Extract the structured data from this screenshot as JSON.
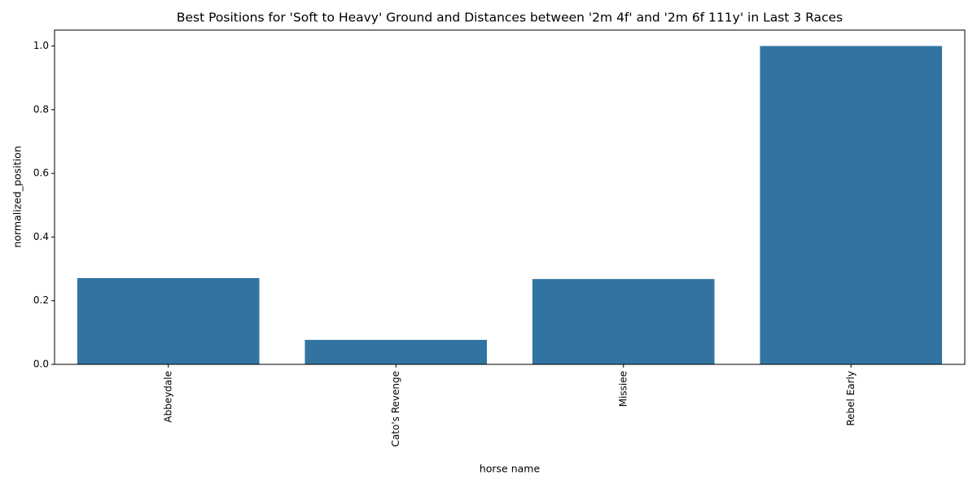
{
  "chart_data": {
    "type": "bar",
    "title": "Best Positions for 'Soft to Heavy' Ground and Distances between '2m 4f' and '2m 6f 111y' in Last 3 Races",
    "x_label": "horse name",
    "y_label": "normalized_position",
    "categories": [
      "Abbeydale",
      "Cato's Revenge",
      "Missiee",
      "Rebel Early"
    ],
    "values": [
      0.271,
      0.077,
      0.268,
      1.0
    ],
    "color": "#3274a1",
    "ylim": [
      0,
      1.05
    ],
    "yticks": [
      {
        "value": 0,
        "label": "0.0"
      },
      0.2,
      0.4,
      0.6,
      0.8,
      {
        "value": 1,
        "label": "1.0"
      }
    ],
    "grid": false
  }
}
